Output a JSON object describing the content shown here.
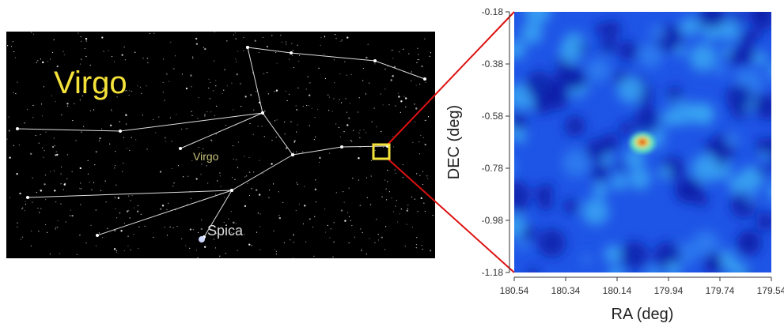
{
  "left_panel": {
    "title": "Virgo",
    "constellation_label": "Virgo",
    "star_label": "Spica"
  },
  "chart_data": {
    "type": "heatmap",
    "xlabel": "RA (deg)",
    "ylabel": "DEC (deg)",
    "xlim": [
      180.54,
      179.54
    ],
    "ylim": [
      -1.18,
      -0.18
    ],
    "xticks": [
      180.54,
      180.34,
      180.14,
      179.94,
      179.74,
      179.54
    ],
    "yticks": [
      -0.18,
      -0.38,
      -0.58,
      -0.78,
      -0.98,
      -1.18
    ]
  }
}
